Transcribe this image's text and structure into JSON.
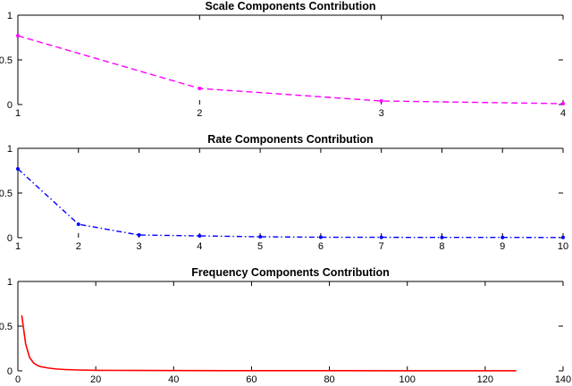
{
  "chart_data": [
    {
      "type": "line",
      "title": "Scale Components Contribution",
      "xlabel": "",
      "ylabel": "",
      "xlim": [
        1,
        4
      ],
      "ylim": [
        0,
        1
      ],
      "xticks": [
        "1",
        "2",
        "3",
        "4"
      ],
      "yticks": [
        "0",
        "0.5",
        "1"
      ],
      "grid": false,
      "line_style": "dashed",
      "marker": "dot",
      "series": [
        {
          "color": "#ff00ff",
          "x": [
            1,
            2,
            3,
            4
          ],
          "values": [
            0.77,
            0.18,
            0.04,
            0.01
          ]
        }
      ]
    },
    {
      "type": "line",
      "title": "Rate Components Contribution",
      "xlabel": "",
      "ylabel": "",
      "xlim": [
        1,
        10
      ],
      "ylim": [
        0,
        1
      ],
      "xticks": [
        "1",
        "2",
        "3",
        "4",
        "5",
        "6",
        "7",
        "8",
        "9",
        "10"
      ],
      "yticks": [
        "0",
        "0.5",
        "1"
      ],
      "grid": false,
      "line_style": "dash-dot",
      "marker": "dot",
      "series": [
        {
          "color": "#0000ff",
          "x": [
            1,
            2,
            3,
            4,
            5,
            6,
            7,
            8,
            9,
            10
          ],
          "values": [
            0.77,
            0.15,
            0.03,
            0.02,
            0.01,
            0.005,
            0.004,
            0.003,
            0.003,
            0.002
          ]
        }
      ]
    },
    {
      "type": "line",
      "title": "Frequency Components Contribution",
      "xlabel": "",
      "ylabel": "",
      "xlim": [
        0,
        140
      ],
      "ylim": [
        0,
        1
      ],
      "xticks": [
        "0",
        "20",
        "40",
        "60",
        "80",
        "100",
        "120",
        "140"
      ],
      "yticks": [
        "0",
        "0.5",
        "1"
      ],
      "grid": false,
      "line_style": "solid",
      "marker": "none",
      "series": [
        {
          "color": "#ff0000",
          "x": [
            1,
            2,
            3,
            4,
            5,
            6,
            8,
            10,
            12,
            15,
            20,
            30,
            40,
            60,
            80,
            100,
            120,
            128
          ],
          "values": [
            0.62,
            0.3,
            0.15,
            0.09,
            0.06,
            0.045,
            0.03,
            0.02,
            0.015,
            0.01,
            0.006,
            0.004,
            0.003,
            0.002,
            0.002,
            0.001,
            0.001,
            0.001
          ]
        }
      ]
    }
  ]
}
